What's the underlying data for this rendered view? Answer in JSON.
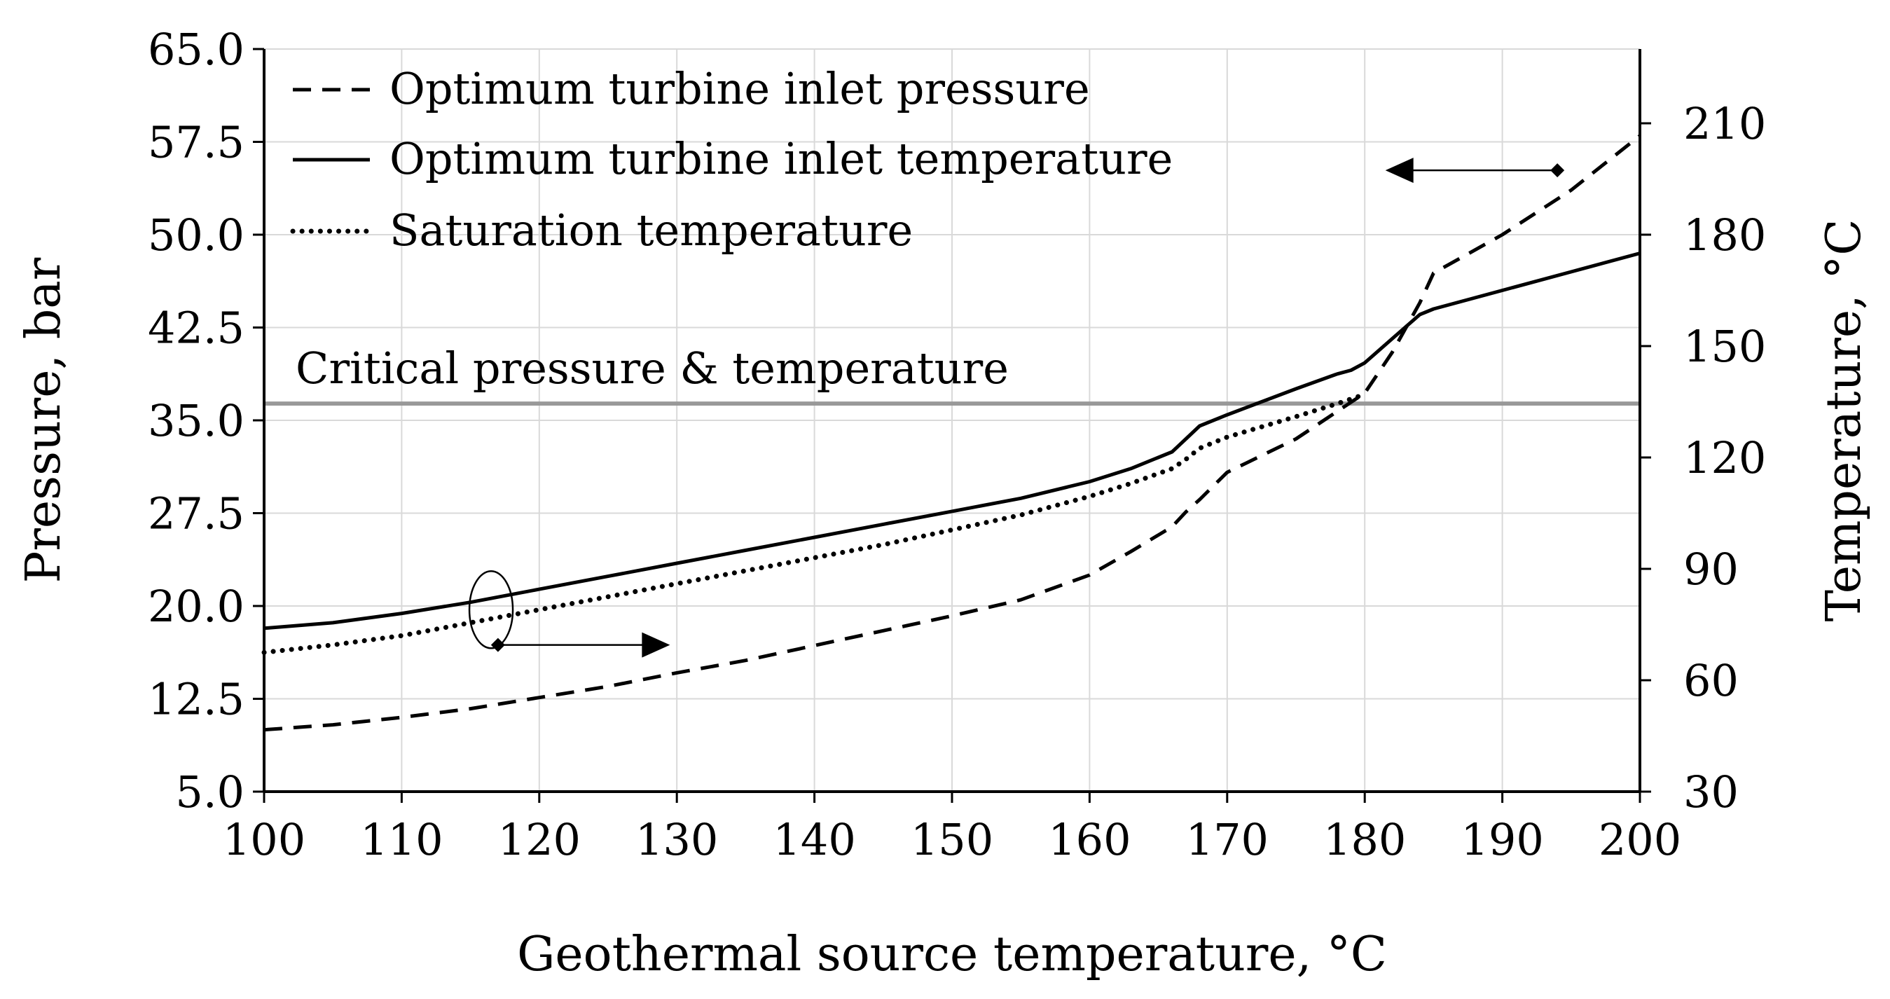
{
  "chart_data": {
    "type": "line",
    "xlabel": "Geothermal source temperature, °C",
    "ylabel_left": "Pressure, bar",
    "ylabel_right": "Temperature, °C",
    "xlim": [
      100,
      200
    ],
    "ylim_left": [
      5.0,
      65.0
    ],
    "ylim_right": [
      30,
      230
    ],
    "x_ticks": [
      "100",
      "110",
      "120",
      "130",
      "140",
      "150",
      "160",
      "170",
      "180",
      "190",
      "200"
    ],
    "y_left_ticks": [
      "5.0",
      "12.5",
      "20.0",
      "27.5",
      "35.0",
      "42.5",
      "50.0",
      "57.5",
      "65.0"
    ],
    "y_right_ticks": [
      "30",
      "60",
      "90",
      "120",
      "150",
      "180",
      "210"
    ],
    "grid": true,
    "legend_position": "top-left",
    "series": [
      {
        "name": "Optimum turbine inlet pressure",
        "axis": "left",
        "style": "dashed",
        "x": [
          100,
          105,
          110,
          115,
          120,
          125,
          130,
          135,
          140,
          145,
          150,
          155,
          160,
          163,
          166,
          167,
          168,
          170,
          175,
          180,
          182,
          184,
          185,
          190,
          195,
          200
        ],
        "y": [
          10.0,
          10.4,
          11.0,
          11.7,
          12.6,
          13.5,
          14.6,
          15.6,
          16.8,
          18.0,
          19.2,
          20.5,
          22.5,
          24.4,
          26.4,
          27.6,
          28.6,
          30.8,
          33.5,
          37.2,
          40.5,
          44.5,
          46.9,
          50.0,
          53.6,
          58.0
        ]
      },
      {
        "name": "Optimum turbine inlet temperature",
        "axis": "right",
        "style": "solid",
        "x": [
          100,
          105,
          110,
          115,
          120,
          125,
          130,
          135,
          140,
          145,
          150,
          155,
          160,
          163,
          166,
          167,
          168,
          170,
          175,
          178,
          179,
          180,
          182,
          184,
          185,
          190,
          195,
          200
        ],
        "y": [
          74.0,
          75.5,
          78.0,
          81.0,
          84.5,
          88.0,
          91.5,
          95.0,
          98.5,
          102.0,
          105.5,
          109.0,
          113.5,
          117.0,
          121.5,
          125.0,
          128.5,
          131.5,
          138.5,
          142.5,
          143.5,
          145.5,
          152.0,
          158.5,
          160.0,
          165.0,
          170.0,
          175.0
        ]
      },
      {
        "name": "Saturation temperature",
        "axis": "right",
        "style": "dotted",
        "x": [
          100,
          105,
          110,
          115,
          120,
          125,
          130,
          135,
          140,
          145,
          150,
          155,
          160,
          163,
          166,
          167,
          168,
          170,
          175,
          178,
          180
        ],
        "y": [
          67.5,
          69.5,
          72.0,
          75.5,
          79.0,
          82.5,
          86.0,
          89.5,
          93.0,
          96.5,
          100.5,
          104.5,
          109.5,
          113.0,
          117.0,
          119.5,
          122.5,
          125.5,
          131.0,
          134.5,
          137.0
        ]
      }
    ],
    "reference_line": {
      "label": "Critical pressure & temperature",
      "pressure": 36.3,
      "temperature": 134.7
    },
    "annotations": [
      {
        "target": "left",
        "from": {
          "x": 194,
          "y": 55.2
        },
        "to": {
          "x": 181.5,
          "y": 55.2
        }
      },
      {
        "target": "right",
        "from": {
          "x": 117,
          "y": 69.5
        },
        "to": {
          "x": 129.5,
          "y": 69.5
        }
      }
    ]
  }
}
